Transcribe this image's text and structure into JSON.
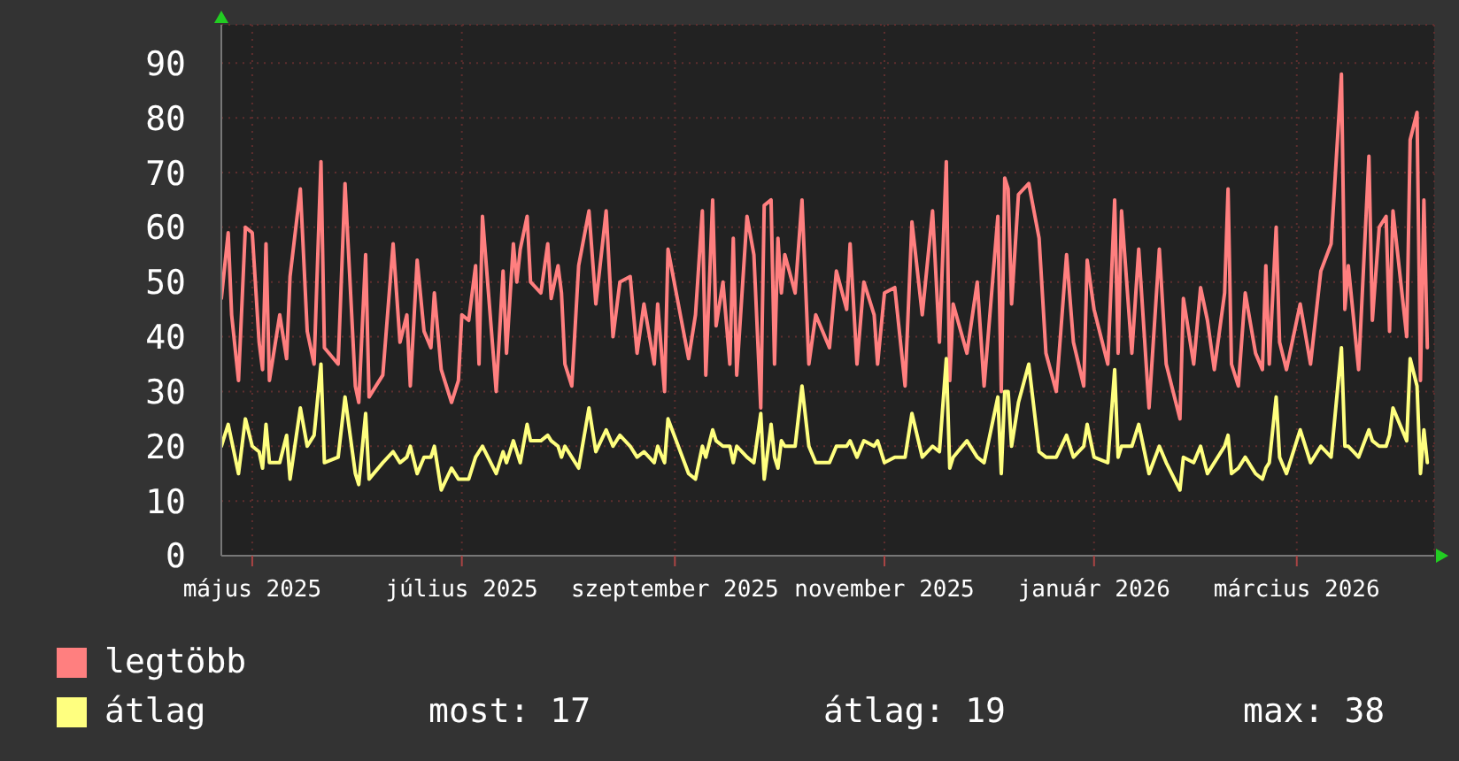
{
  "chart_data": {
    "type": "line",
    "x": [
      "2025-04-22",
      "2025-04-24",
      "2025-04-25",
      "2025-04-27",
      "2025-04-29",
      "2025-05-01",
      "2025-05-03",
      "2025-05-04",
      "2025-05-05",
      "2025-05-06",
      "2025-05-09",
      "2025-05-11",
      "2025-05-12",
      "2025-05-15",
      "2025-05-17",
      "2025-05-19",
      "2025-05-21",
      "2025-05-22",
      "2025-05-26",
      "2025-05-28",
      "2025-05-31",
      "2025-06-01",
      "2025-06-03",
      "2025-06-04",
      "2025-06-08",
      "2025-06-11",
      "2025-06-13",
      "2025-06-15",
      "2025-06-16",
      "2025-06-18",
      "2025-06-20",
      "2025-06-22",
      "2025-06-23",
      "2025-06-25",
      "2025-06-28",
      "2025-06-30",
      "2025-07-01",
      "2025-07-03",
      "2025-07-05",
      "2025-07-06",
      "2025-07-07",
      "2025-07-11",
      "2025-07-13",
      "2025-07-14",
      "2025-07-16",
      "2025-07-17",
      "2025-07-18",
      "2025-07-20",
      "2025-07-21",
      "2025-07-24",
      "2025-07-26",
      "2025-07-27",
      "2025-07-29",
      "2025-07-30",
      "2025-07-31",
      "2025-08-02",
      "2025-08-04",
      "2025-08-07",
      "2025-08-09",
      "2025-08-12",
      "2025-08-14",
      "2025-08-16",
      "2025-08-19",
      "2025-08-21",
      "2025-08-23",
      "2025-08-26",
      "2025-08-27",
      "2025-08-29",
      "2025-08-30",
      "2025-09-05",
      "2025-09-07",
      "2025-09-09",
      "2025-09-10",
      "2025-09-12",
      "2025-09-13",
      "2025-09-15",
      "2025-09-17",
      "2025-09-18",
      "2025-09-19",
      "2025-09-22",
      "2025-09-24",
      "2025-09-26",
      "2025-09-27",
      "2025-09-29",
      "2025-09-30",
      "2025-10-01",
      "2025-10-02",
      "2025-10-03",
      "2025-10-06",
      "2025-10-08",
      "2025-10-10",
      "2025-10-12",
      "2025-10-16",
      "2025-10-18",
      "2025-10-21",
      "2025-10-22",
      "2025-10-24",
      "2025-10-26",
      "2025-10-29",
      "2025-10-30",
      "2025-11-01",
      "2025-11-04",
      "2025-11-07",
      "2025-11-09",
      "2025-11-12",
      "2025-11-15",
      "2025-11-17",
      "2025-11-19",
      "2025-11-20",
      "2025-11-21",
      "2025-11-25",
      "2025-11-28",
      "2025-11-30",
      "2025-12-04",
      "2025-12-05",
      "2025-12-06",
      "2025-12-07",
      "2025-12-08",
      "2025-12-10",
      "2025-12-13",
      "2025-12-16",
      "2025-12-18",
      "2025-12-21",
      "2025-12-24",
      "2025-12-26",
      "2025-12-29",
      "2025-12-30",
      "2026-01-01",
      "2026-01-05",
      "2026-01-07",
      "2026-01-08",
      "2026-01-09",
      "2026-01-12",
      "2026-01-14",
      "2026-01-17",
      "2026-01-20",
      "2026-01-22",
      "2026-01-26",
      "2026-01-27",
      "2026-01-30",
      "2026-02-01",
      "2026-02-03",
      "2026-02-05",
      "2026-02-08",
      "2026-02-09",
      "2026-02-10",
      "2026-02-12",
      "2026-02-14",
      "2026-02-17",
      "2026-02-19",
      "2026-02-20",
      "2026-02-21",
      "2026-02-23",
      "2026-02-24",
      "2026-02-26",
      "2026-03-02",
      "2026-03-05",
      "2026-03-08",
      "2026-03-11",
      "2026-03-14",
      "2026-03-15",
      "2026-03-16",
      "2026-03-19",
      "2026-03-22",
      "2026-03-23",
      "2026-03-25",
      "2026-03-27",
      "2026-03-28",
      "2026-03-29",
      "2026-04-02",
      "2026-04-03",
      "2026-04-05",
      "2026-04-06",
      "2026-04-07",
      "2026-04-08"
    ],
    "series": [
      {
        "name": "legtöbb",
        "color": "#ff7f7f",
        "values": [
          47,
          59,
          44,
          32,
          60,
          59,
          39,
          34,
          57,
          32,
          44,
          36,
          51,
          67,
          41,
          35,
          72,
          38,
          35,
          68,
          31,
          28,
          55,
          29,
          33,
          57,
          39,
          44,
          31,
          54,
          41,
          38,
          48,
          34,
          28,
          32,
          44,
          43,
          53,
          35,
          62,
          30,
          52,
          37,
          57,
          50,
          56,
          62,
          50,
          48,
          57,
          47,
          53,
          48,
          35,
          31,
          53,
          63,
          46,
          63,
          40,
          50,
          51,
          37,
          46,
          35,
          46,
          30,
          56,
          36,
          44,
          63,
          33,
          65,
          42,
          50,
          35,
          58,
          33,
          62,
          55,
          27,
          64,
          65,
          35,
          58,
          48,
          55,
          48,
          65,
          35,
          44,
          38,
          52,
          45,
          57,
          35,
          50,
          44,
          35,
          48,
          49,
          31,
          61,
          44,
          63,
          39,
          72,
          32,
          46,
          37,
          50,
          31,
          62,
          30,
          69,
          67,
          46,
          66,
          68,
          58,
          37,
          30,
          55,
          39,
          31,
          54,
          45,
          35,
          65,
          37,
          63,
          37,
          56,
          27,
          56,
          35,
          25,
          47,
          35,
          49,
          43,
          34,
          48,
          67,
          35,
          31,
          48,
          37,
          34,
          53,
          35,
          60,
          39,
          34,
          46,
          35,
          52,
          57,
          88,
          45,
          53,
          34,
          73,
          43,
          60,
          62,
          41,
          63,
          40,
          76,
          81,
          32,
          65,
          38
        ]
      },
      {
        "name": "átlag",
        "color": "#ffff7f",
        "values": [
          20,
          24,
          21,
          15,
          25,
          20,
          19,
          16,
          24,
          17,
          17,
          22,
          14,
          27,
          20,
          22,
          35,
          17,
          18,
          29,
          15,
          13,
          26,
          14,
          17,
          19,
          17,
          18,
          20,
          15,
          18,
          18,
          20,
          12,
          16,
          14,
          14,
          14,
          18,
          19,
          20,
          15,
          19,
          17,
          21,
          19,
          17,
          24,
          21,
          21,
          22,
          21,
          20,
          18,
          20,
          18,
          16,
          27,
          19,
          23,
          20,
          22,
          20,
          18,
          19,
          17,
          20,
          17,
          25,
          15,
          14,
          20,
          18,
          23,
          21,
          20,
          20,
          17,
          20,
          18,
          17,
          26,
          14,
          24,
          18,
          16,
          21,
          20,
          20,
          31,
          20,
          17,
          17,
          20,
          20,
          21,
          18,
          21,
          20,
          21,
          17,
          18,
          18,
          26,
          18,
          20,
          19,
          36,
          16,
          18,
          21,
          18,
          17,
          29,
          15,
          30,
          30,
          20,
          28,
          35,
          19,
          18,
          18,
          22,
          18,
          20,
          24,
          18,
          17,
          34,
          18,
          20,
          20,
          24,
          15,
          20,
          17,
          12,
          18,
          17,
          20,
          15,
          17,
          20,
          22,
          15,
          16,
          18,
          15,
          14,
          16,
          17,
          29,
          18,
          15,
          23,
          17,
          20,
          18,
          38,
          20,
          20,
          18,
          23,
          21,
          20,
          20,
          22,
          27,
          21,
          36,
          31,
          15,
          23,
          17
        ]
      }
    ],
    "xlim": [
      "2025-04-22",
      "2026-04-10"
    ],
    "xticks": [
      {
        "value": "2025-05-01",
        "label": "május 2025"
      },
      {
        "value": "2025-07-01",
        "label": "július 2025"
      },
      {
        "value": "2025-09-01",
        "label": "szeptember 2025"
      },
      {
        "value": "2025-11-01",
        "label": "november 2025"
      },
      {
        "value": "2026-01-01",
        "label": "január 2026"
      },
      {
        "value": "2026-03-01",
        "label": "március 2026"
      }
    ],
    "ylim": [
      0,
      97
    ],
    "yticks": [
      0,
      10,
      20,
      30,
      40,
      50,
      60,
      70,
      80,
      90
    ],
    "grid": true,
    "legend": "bottom left",
    "marker": "none",
    "line_style": "solid",
    "annotations": [
      "most: 17",
      "átlag: 19",
      "max: 38"
    ]
  }
}
